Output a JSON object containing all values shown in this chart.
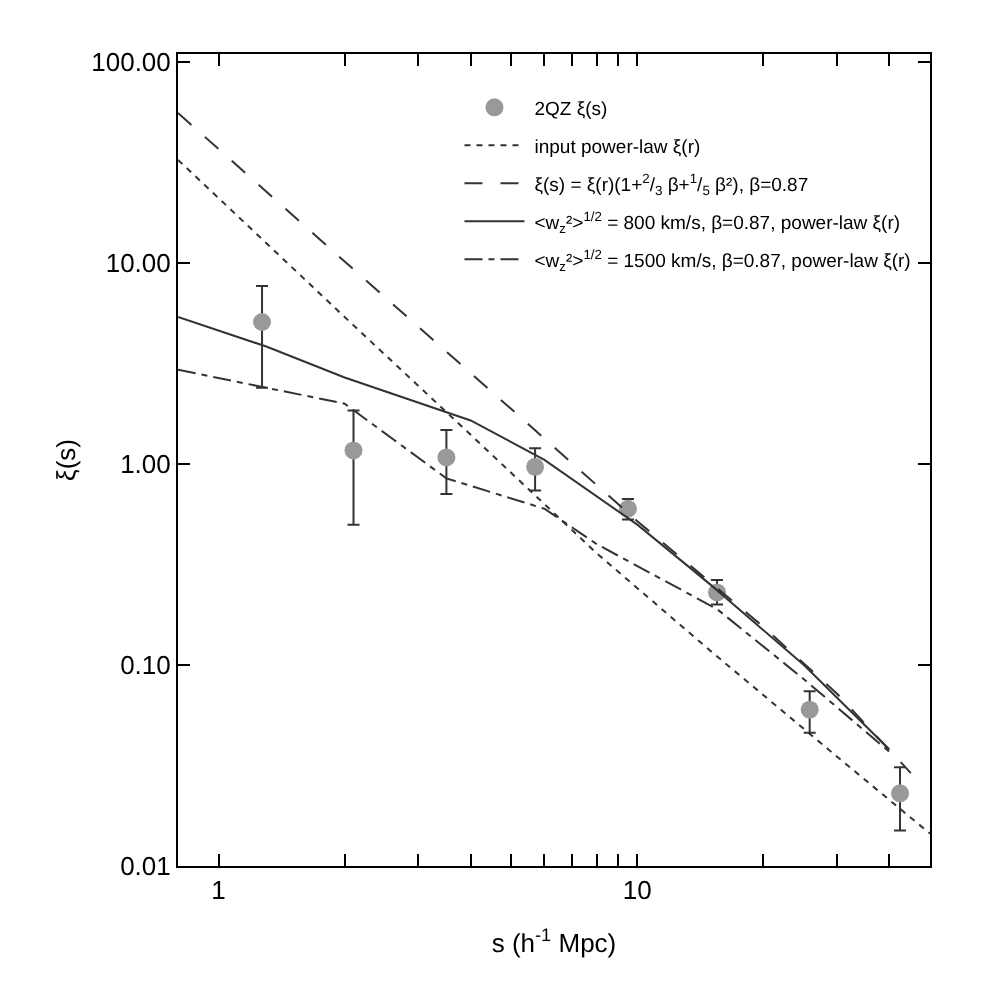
{
  "chart_data": {
    "type": "scatter",
    "xlabel": "s (h$^{-1}$ Mpc)",
    "ylabel": "ξ(s)",
    "log": "xy",
    "legend": "top right",
    "xlim": [
      0.8,
      50
    ],
    "ylim": [
      0.01,
      110
    ],
    "xticks": [
      1,
      {
        "value": 2,
        "label": null
      },
      {
        "value": 3,
        "label": null
      },
      {
        "value": 4,
        "label": null
      },
      {
        "value": 5,
        "label": null
      },
      {
        "value": 6,
        "label": null
      },
      {
        "value": 7,
        "label": null
      },
      {
        "value": 8,
        "label": null
      },
      {
        "value": 9,
        "label": null
      },
      10,
      {
        "value": 20,
        "label": null
      },
      {
        "value": 30,
        "label": null
      },
      {
        "value": 40,
        "label": null
      }
    ],
    "yticks": [
      {
        "value": 0.01,
        "label": "0.01"
      },
      {
        "value": 0.1,
        "label": "0.10"
      },
      {
        "value": 1,
        "label": "1.00"
      },
      {
        "value": 10,
        "label": "10.00"
      },
      {
        "value": 100,
        "label": "100.00"
      }
    ],
    "series": [
      {
        "name": "2QZ ξ(s)",
        "marker": "circle",
        "color": "#999999",
        "x": [
          1.27,
          2.1,
          3.5,
          5.7,
          9.5,
          15.5,
          25.8,
          42.4
        ],
        "values": [
          5.1,
          1.17,
          1.08,
          0.97,
          0.6,
          0.23,
          0.06,
          0.023
        ],
        "errors": [
          [
            2.4,
            7.7
          ],
          [
            0.5,
            1.85
          ],
          [
            0.71,
            1.48
          ],
          [
            0.74,
            1.2
          ],
          [
            0.53,
            0.67
          ],
          [
            0.2,
            0.265
          ],
          [
            0.046,
            0.074
          ],
          [
            0.015,
            0.031
          ]
        ]
      },
      {
        "name": "input power-law ξ(r)",
        "type": "line",
        "line_style": "dotted",
        "color": "#333333",
        "x": [
          0.8,
          2,
          4,
          8,
          15,
          30,
          50
        ],
        "values": [
          32.7,
          5.4,
          1.4,
          0.36,
          0.117,
          0.035,
          0.0145
        ]
      },
      {
        "name": "ξ(s) = ξ(r)(1+$^{2}$/$_{3}$ β+$^{1}$/$_{5}$ β²), β=0.87",
        "type": "line",
        "line_style": "dashed",
        "color": "#333333",
        "x": [
          0.8,
          2,
          5,
          10,
          20,
          30,
          45
        ],
        "values": [
          56,
          10.2,
          1.88,
          0.52,
          0.155,
          0.072,
          0.029
        ]
      },
      {
        "name": "<w$_{z}$²>$^{1/2}$ = 800 km/s, β=0.87, power-law ξ(r)",
        "type": "line",
        "line_style": "solid",
        "color": "#333333",
        "x": [
          0.8,
          1.3,
          2,
          4,
          6,
          10,
          15,
          25,
          40
        ],
        "values": [
          5.4,
          3.85,
          2.7,
          1.65,
          1.05,
          0.5,
          0.25,
          0.1,
          0.038
        ]
      },
      {
        "name": "<w$_{z}$²>$^{1/2}$ = 1500 km/s, β=0.87, power-law ξ(r)",
        "type": "line",
        "line_style": "dashdot",
        "color": "#333333",
        "x": [
          0.8,
          2,
          3.5,
          6,
          8,
          15.5,
          25,
          40
        ],
        "values": [
          2.95,
          2.0,
          0.85,
          0.6,
          0.4,
          0.19,
          0.085,
          0.037
        ]
      }
    ]
  }
}
